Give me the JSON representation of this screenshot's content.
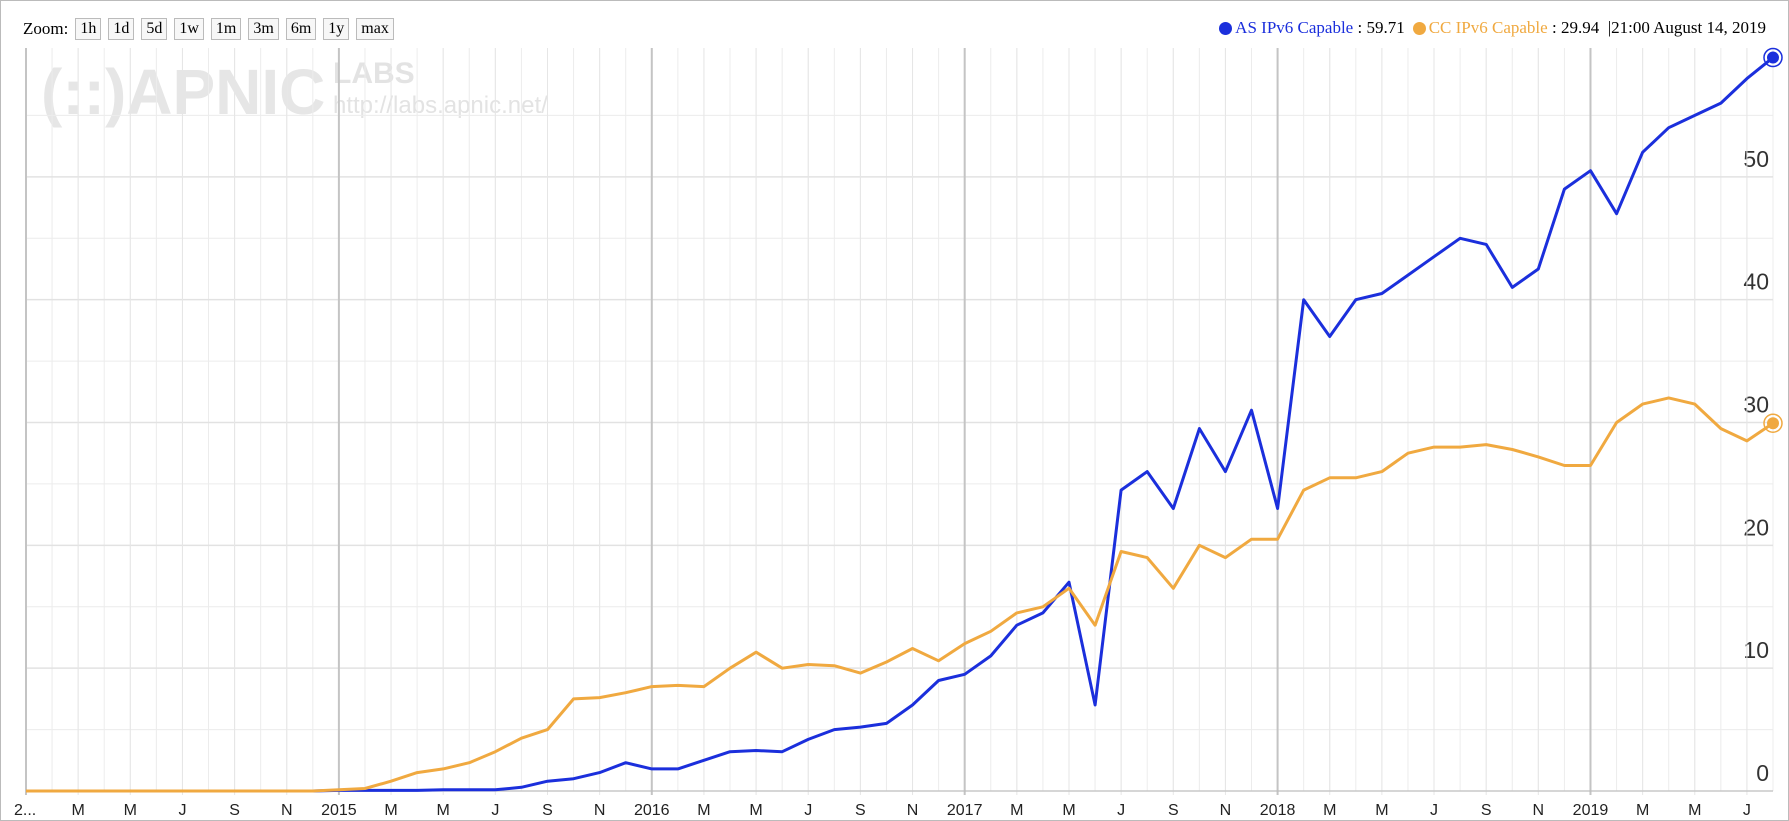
{
  "chart_data": {
    "type": "line",
    "zoom": {
      "label": "Zoom:",
      "options": [
        "1h",
        "1d",
        "5d",
        "1w",
        "1m",
        "3m",
        "6m",
        "1y",
        "max"
      ]
    },
    "legend_time": "21:00 August 14, 2019",
    "watermark": {
      "logo": "(::)APNIC",
      "labs": "LABS",
      "url": "http://labs.apnic.net/"
    },
    "x": [
      "2014-01",
      "2014-02",
      "2014-03",
      "2014-04",
      "2014-05",
      "2014-06",
      "2014-07",
      "2014-08",
      "2014-09",
      "2014-10",
      "2014-11",
      "2014-12",
      "2015-01",
      "2015-02",
      "2015-03",
      "2015-04",
      "2015-05",
      "2015-06",
      "2015-07",
      "2015-08",
      "2015-09",
      "2015-10",
      "2015-11",
      "2015-12",
      "2016-01",
      "2016-02",
      "2016-03",
      "2016-04",
      "2016-05",
      "2016-06",
      "2016-07",
      "2016-08",
      "2016-09",
      "2016-10",
      "2016-11",
      "2016-12",
      "2017-01",
      "2017-02",
      "2017-03",
      "2017-04",
      "2017-05",
      "2017-06",
      "2017-07",
      "2017-08",
      "2017-09",
      "2017-10",
      "2017-11",
      "2017-12",
      "2018-01",
      "2018-02",
      "2018-03",
      "2018-04",
      "2018-05",
      "2018-06",
      "2018-07",
      "2018-08",
      "2018-09",
      "2018-10",
      "2018-11",
      "2018-12",
      "2019-01",
      "2019-02",
      "2019-03",
      "2019-04",
      "2019-05",
      "2019-06",
      "2019-07",
      "2019-08"
    ],
    "series": [
      {
        "name": "AS IPv6 Capable",
        "color": "#1b2fdc",
        "values": [
          0,
          0,
          0,
          0,
          0,
          0,
          0,
          0,
          0,
          0,
          0,
          0,
          0.05,
          0.05,
          0.05,
          0.05,
          0.1,
          0.1,
          0.1,
          0.3,
          0.8,
          1.0,
          1.5,
          2.3,
          1.8,
          1.8,
          2.5,
          3.2,
          3.3,
          3.2,
          4.2,
          5.0,
          5.2,
          5.5,
          7.0,
          9.0,
          9.5,
          11.0,
          13.5,
          14.5,
          17.0,
          7.0,
          24.5,
          26.0,
          23.0,
          29.5,
          26.0,
          31.0,
          23.0,
          40.0,
          37.0,
          40.0,
          40.5,
          42.0,
          43.5,
          45.0,
          44.5,
          41.0,
          42.5,
          49.0,
          50.5,
          47.0,
          52.0,
          54.0,
          55.0,
          56.0,
          58.0,
          59.71
        ]
      },
      {
        "name": "CC IPv6 Capable",
        "color": "#f0a940",
        "values": [
          0,
          0,
          0,
          0,
          0,
          0,
          0,
          0,
          0,
          0,
          0,
          0,
          0.1,
          0.2,
          0.8,
          1.5,
          1.8,
          2.3,
          3.2,
          4.3,
          5.0,
          7.5,
          7.6,
          8.0,
          8.5,
          8.6,
          8.5,
          10.0,
          11.3,
          10.0,
          10.3,
          10.2,
          9.6,
          10.5,
          11.6,
          10.6,
          12.0,
          13.0,
          14.5,
          15.0,
          16.5,
          13.5,
          19.5,
          19.0,
          16.5,
          20.0,
          19.0,
          20.5,
          20.5,
          24.5,
          25.5,
          25.5,
          26.0,
          27.5,
          28.0,
          28.0,
          28.2,
          27.8,
          27.2,
          26.5,
          26.5,
          30.0,
          31.5,
          32.0,
          31.5,
          29.5,
          28.5,
          29.94
        ]
      }
    ],
    "xlim": [
      "2014-01",
      "2019-08"
    ],
    "xticks": [
      {
        "value": "2014-01",
        "label": "2..."
      },
      {
        "value": "2014-03",
        "label": "M"
      },
      {
        "value": "2014-05",
        "label": "M"
      },
      {
        "value": "2014-07",
        "label": "J"
      },
      {
        "value": "2014-09",
        "label": "S"
      },
      {
        "value": "2014-11",
        "label": "N"
      },
      {
        "value": "2015-01",
        "label": "2015"
      },
      {
        "value": "2015-03",
        "label": "M"
      },
      {
        "value": "2015-05",
        "label": "M"
      },
      {
        "value": "2015-07",
        "label": "J"
      },
      {
        "value": "2015-09",
        "label": "S"
      },
      {
        "value": "2015-11",
        "label": "N"
      },
      {
        "value": "2016-01",
        "label": "2016"
      },
      {
        "value": "2016-03",
        "label": "M"
      },
      {
        "value": "2016-05",
        "label": "M"
      },
      {
        "value": "2016-07",
        "label": "J"
      },
      {
        "value": "2016-09",
        "label": "S"
      },
      {
        "value": "2016-11",
        "label": "N"
      },
      {
        "value": "2017-01",
        "label": "2017"
      },
      {
        "value": "2017-03",
        "label": "M"
      },
      {
        "value": "2017-05",
        "label": "M"
      },
      {
        "value": "2017-07",
        "label": "J"
      },
      {
        "value": "2017-09",
        "label": "S"
      },
      {
        "value": "2017-11",
        "label": "N"
      },
      {
        "value": "2018-01",
        "label": "2018"
      },
      {
        "value": "2018-03",
        "label": "M"
      },
      {
        "value": "2018-05",
        "label": "M"
      },
      {
        "value": "2018-07",
        "label": "J"
      },
      {
        "value": "2018-09",
        "label": "S"
      },
      {
        "value": "2018-11",
        "label": "N"
      },
      {
        "value": "2019-01",
        "label": "2019"
      },
      {
        "value": "2019-03",
        "label": "M"
      },
      {
        "value": "2019-05",
        "label": "M"
      },
      {
        "value": "2019-07",
        "label": "J"
      }
    ],
    "ylim": [
      0,
      60
    ],
    "yticks": [
      0,
      10,
      20,
      30,
      40,
      50
    ],
    "y_minor_ticks": [
      5,
      15,
      25,
      35,
      45,
      55
    ],
    "grid": true
  }
}
